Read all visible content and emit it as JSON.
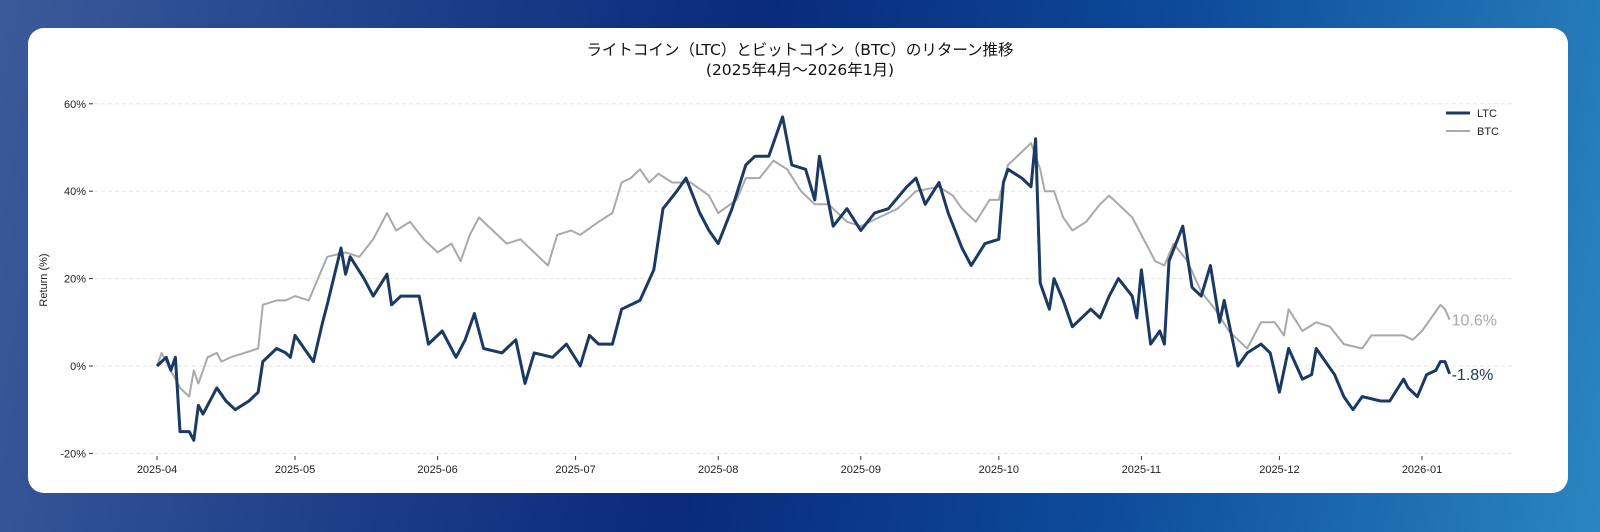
{
  "chart_data": {
    "type": "line",
    "title": "ライトコイン（LTC）とビットコイン（BTC）のリターン推移",
    "subtitle": "(2025年4月〜2026年1月)",
    "xlabel": "",
    "ylabel": "Return (%)",
    "ylim": [
      -20,
      60
    ],
    "yticks": [
      -20,
      0,
      20,
      40,
      60
    ],
    "ytick_labels": [
      "-20%",
      "0%",
      "20%",
      "40%",
      "60%"
    ],
    "xticks": [
      "2025-04-01",
      "2025-05-01",
      "2025-06-01",
      "2025-07-01",
      "2025-08-01",
      "2025-09-01",
      "2025-10-01",
      "2025-11-01",
      "2025-12-01",
      "2026-01-01"
    ],
    "xtick_labels": [
      "2025-04",
      "2025-05",
      "2025-06",
      "2025-07",
      "2025-08",
      "2025-09",
      "2025-10",
      "2025-11",
      "2025-12",
      "2026-01"
    ],
    "grid": "horizontal dashed",
    "legend": "top-right",
    "series": [
      {
        "name": "LTC",
        "color": "#1b3a63",
        "end_label": "-1.8%",
        "points": [
          [
            "2025-04-01",
            0
          ],
          [
            "2025-04-03",
            2
          ],
          [
            "2025-04-04",
            -1
          ],
          [
            "2025-04-05",
            2
          ],
          [
            "2025-04-06",
            -15
          ],
          [
            "2025-04-08",
            -15
          ],
          [
            "2025-04-09",
            -17
          ],
          [
            "2025-04-10",
            -9
          ],
          [
            "2025-04-11",
            -11
          ],
          [
            "2025-04-14",
            -5
          ],
          [
            "2025-04-16",
            -8
          ],
          [
            "2025-04-18",
            -10
          ],
          [
            "2025-04-21",
            -8
          ],
          [
            "2025-04-23",
            -6
          ],
          [
            "2025-04-24",
            1
          ],
          [
            "2025-04-27",
            4
          ],
          [
            "2025-04-29",
            3
          ],
          [
            "2025-04-30",
            2
          ],
          [
            "2025-05-01",
            7
          ],
          [
            "2025-05-05",
            1
          ],
          [
            "2025-05-07",
            10
          ],
          [
            "2025-05-08",
            14
          ],
          [
            "2025-05-11",
            27
          ],
          [
            "2025-05-12",
            21
          ],
          [
            "2025-05-13",
            25
          ],
          [
            "2025-05-16",
            20
          ],
          [
            "2025-05-18",
            16
          ],
          [
            "2025-05-21",
            21
          ],
          [
            "2025-05-22",
            14
          ],
          [
            "2025-05-24",
            16
          ],
          [
            "2025-05-28",
            16
          ],
          [
            "2025-05-30",
            5
          ],
          [
            "2025-06-02",
            8
          ],
          [
            "2025-06-05",
            2
          ],
          [
            "2025-06-07",
            6
          ],
          [
            "2025-06-09",
            12
          ],
          [
            "2025-06-11",
            4
          ],
          [
            "2025-06-15",
            3
          ],
          [
            "2025-06-18",
            6
          ],
          [
            "2025-06-20",
            -4
          ],
          [
            "2025-06-22",
            3
          ],
          [
            "2025-06-26",
            2
          ],
          [
            "2025-06-29",
            5
          ],
          [
            "2025-07-02",
            0
          ],
          [
            "2025-07-04",
            7
          ],
          [
            "2025-07-06",
            5
          ],
          [
            "2025-07-09",
            5
          ],
          [
            "2025-07-11",
            13
          ],
          [
            "2025-07-15",
            15
          ],
          [
            "2025-07-18",
            22
          ],
          [
            "2025-07-20",
            36
          ],
          [
            "2025-07-23",
            40
          ],
          [
            "2025-07-25",
            43
          ],
          [
            "2025-07-28",
            35
          ],
          [
            "2025-07-30",
            31
          ],
          [
            "2025-08-01",
            28
          ],
          [
            "2025-08-04",
            36
          ],
          [
            "2025-08-07",
            46
          ],
          [
            "2025-08-09",
            48
          ],
          [
            "2025-08-12",
            48
          ],
          [
            "2025-08-15",
            57
          ],
          [
            "2025-08-17",
            46
          ],
          [
            "2025-08-20",
            45
          ],
          [
            "2025-08-22",
            38
          ],
          [
            "2025-08-23",
            48
          ],
          [
            "2025-08-26",
            32
          ],
          [
            "2025-08-29",
            36
          ],
          [
            "2025-09-01",
            31
          ],
          [
            "2025-09-04",
            35
          ],
          [
            "2025-09-07",
            36
          ],
          [
            "2025-09-11",
            41
          ],
          [
            "2025-09-13",
            43
          ],
          [
            "2025-09-15",
            37
          ],
          [
            "2025-09-18",
            42
          ],
          [
            "2025-09-20",
            35
          ],
          [
            "2025-09-23",
            27
          ],
          [
            "2025-09-25",
            23
          ],
          [
            "2025-09-28",
            28
          ],
          [
            "2025-10-01",
            29
          ],
          [
            "2025-10-02",
            42
          ],
          [
            "2025-10-03",
            45
          ],
          [
            "2025-10-06",
            43
          ],
          [
            "2025-10-08",
            41
          ],
          [
            "2025-10-09",
            52
          ],
          [
            "2025-10-10",
            19
          ],
          [
            "2025-10-12",
            13
          ],
          [
            "2025-10-13",
            20
          ],
          [
            "2025-10-15",
            15
          ],
          [
            "2025-10-17",
            9
          ],
          [
            "2025-10-21",
            13
          ],
          [
            "2025-10-23",
            11
          ],
          [
            "2025-10-25",
            16
          ],
          [
            "2025-10-27",
            20
          ],
          [
            "2025-10-30",
            16
          ],
          [
            "2025-10-31",
            11
          ],
          [
            "2025-11-01",
            22
          ],
          [
            "2025-11-03",
            5
          ],
          [
            "2025-11-05",
            8
          ],
          [
            "2025-11-06",
            5
          ],
          [
            "2025-11-07",
            24
          ],
          [
            "2025-11-10",
            32
          ],
          [
            "2025-11-12",
            18
          ],
          [
            "2025-11-14",
            16
          ],
          [
            "2025-11-16",
            23
          ],
          [
            "2025-11-18",
            10
          ],
          [
            "2025-11-19",
            15
          ],
          [
            "2025-11-22",
            0
          ],
          [
            "2025-11-24",
            3
          ],
          [
            "2025-11-27",
            5
          ],
          [
            "2025-11-29",
            3
          ],
          [
            "2025-12-01",
            -6
          ],
          [
            "2025-12-03",
            4
          ],
          [
            "2025-12-06",
            -3
          ],
          [
            "2025-12-08",
            -2
          ],
          [
            "2025-12-09",
            4
          ],
          [
            "2025-12-13",
            -2
          ],
          [
            "2025-12-15",
            -7
          ],
          [
            "2025-12-17",
            -10
          ],
          [
            "2025-12-19",
            -7
          ],
          [
            "2025-12-23",
            -8
          ],
          [
            "2025-12-25",
            -8
          ],
          [
            "2025-12-28",
            -3
          ],
          [
            "2025-12-29",
            -5
          ],
          [
            "2025-12-31",
            -7
          ],
          [
            "2026-01-02",
            -2
          ],
          [
            "2026-01-04",
            -1
          ],
          [
            "2026-01-05",
            1
          ],
          [
            "2026-01-06",
            1
          ],
          [
            "2026-01-07",
            -1.8
          ]
        ]
      },
      {
        "name": "BTC",
        "color": "#a7a9ac",
        "end_label": "10.6%",
        "points": [
          [
            "2025-04-01",
            0
          ],
          [
            "2025-04-02",
            3
          ],
          [
            "2025-04-04",
            -1
          ],
          [
            "2025-04-06",
            -5
          ],
          [
            "2025-04-08",
            -7
          ],
          [
            "2025-04-09",
            -1
          ],
          [
            "2025-04-10",
            -4
          ],
          [
            "2025-04-12",
            2
          ],
          [
            "2025-04-14",
            3
          ],
          [
            "2025-04-15",
            1
          ],
          [
            "2025-04-17",
            2
          ],
          [
            "2025-04-20",
            3
          ],
          [
            "2025-04-23",
            4
          ],
          [
            "2025-04-24",
            14
          ],
          [
            "2025-04-27",
            15
          ],
          [
            "2025-04-29",
            15
          ],
          [
            "2025-05-01",
            16
          ],
          [
            "2025-05-04",
            15
          ],
          [
            "2025-05-08",
            25
          ],
          [
            "2025-05-12",
            26
          ],
          [
            "2025-05-15",
            25
          ],
          [
            "2025-05-18",
            29
          ],
          [
            "2025-05-21",
            35
          ],
          [
            "2025-05-23",
            31
          ],
          [
            "2025-05-26",
            33
          ],
          [
            "2025-05-29",
            29
          ],
          [
            "2025-06-01",
            26
          ],
          [
            "2025-06-04",
            28
          ],
          [
            "2025-06-06",
            24
          ],
          [
            "2025-06-08",
            30
          ],
          [
            "2025-06-10",
            34
          ],
          [
            "2025-06-13",
            31
          ],
          [
            "2025-06-16",
            28
          ],
          [
            "2025-06-19",
            29
          ],
          [
            "2025-06-23",
            25
          ],
          [
            "2025-06-25",
            23
          ],
          [
            "2025-06-27",
            30
          ],
          [
            "2025-06-30",
            31
          ],
          [
            "2025-07-02",
            30
          ],
          [
            "2025-07-06",
            33
          ],
          [
            "2025-07-09",
            35
          ],
          [
            "2025-07-11",
            42
          ],
          [
            "2025-07-13",
            43
          ],
          [
            "2025-07-15",
            45
          ],
          [
            "2025-07-17",
            42
          ],
          [
            "2025-07-19",
            44
          ],
          [
            "2025-07-22",
            42
          ],
          [
            "2025-07-26",
            42
          ],
          [
            "2025-07-30",
            39
          ],
          [
            "2025-08-01",
            35
          ],
          [
            "2025-08-05",
            38
          ],
          [
            "2025-08-07",
            43
          ],
          [
            "2025-08-10",
            43
          ],
          [
            "2025-08-13",
            47
          ],
          [
            "2025-08-16",
            45
          ],
          [
            "2025-08-19",
            40
          ],
          [
            "2025-08-22",
            37
          ],
          [
            "2025-08-25",
            37
          ],
          [
            "2025-08-29",
            33
          ],
          [
            "2025-09-01",
            32
          ],
          [
            "2025-09-05",
            34
          ],
          [
            "2025-09-09",
            36
          ],
          [
            "2025-09-13",
            40
          ],
          [
            "2025-09-18",
            41
          ],
          [
            "2025-09-21",
            39
          ],
          [
            "2025-09-23",
            36
          ],
          [
            "2025-09-26",
            33
          ],
          [
            "2025-09-29",
            38
          ],
          [
            "2025-10-01",
            38
          ],
          [
            "2025-10-03",
            46
          ],
          [
            "2025-10-06",
            49
          ],
          [
            "2025-10-08",
            51
          ],
          [
            "2025-10-10",
            45
          ],
          [
            "2025-10-11",
            40
          ],
          [
            "2025-10-13",
            40
          ],
          [
            "2025-10-15",
            34
          ],
          [
            "2025-10-17",
            31
          ],
          [
            "2025-10-20",
            33
          ],
          [
            "2025-10-23",
            37
          ],
          [
            "2025-10-25",
            39
          ],
          [
            "2025-10-27",
            37
          ],
          [
            "2025-10-30",
            34
          ],
          [
            "2025-11-01",
            30
          ],
          [
            "2025-11-04",
            24
          ],
          [
            "2025-11-06",
            23
          ],
          [
            "2025-11-08",
            28
          ],
          [
            "2025-11-11",
            24
          ],
          [
            "2025-11-14",
            17
          ],
          [
            "2025-11-17",
            13
          ],
          [
            "2025-11-20",
            8
          ],
          [
            "2025-11-22",
            6
          ],
          [
            "2025-11-24",
            4
          ],
          [
            "2025-11-27",
            10
          ],
          [
            "2025-11-30",
            10
          ],
          [
            "2025-12-02",
            7
          ],
          [
            "2025-12-03",
            13
          ],
          [
            "2025-12-06",
            8
          ],
          [
            "2025-12-09",
            10
          ],
          [
            "2025-12-12",
            9
          ],
          [
            "2025-12-15",
            5
          ],
          [
            "2025-12-19",
            4
          ],
          [
            "2025-12-21",
            7
          ],
          [
            "2025-12-24",
            7
          ],
          [
            "2025-12-28",
            7
          ],
          [
            "2025-12-30",
            6
          ],
          [
            "2026-01-01",
            8
          ],
          [
            "2026-01-03",
            11
          ],
          [
            "2026-01-05",
            14
          ],
          [
            "2026-01-06",
            13
          ],
          [
            "2026-01-07",
            10.6
          ]
        ]
      }
    ]
  }
}
